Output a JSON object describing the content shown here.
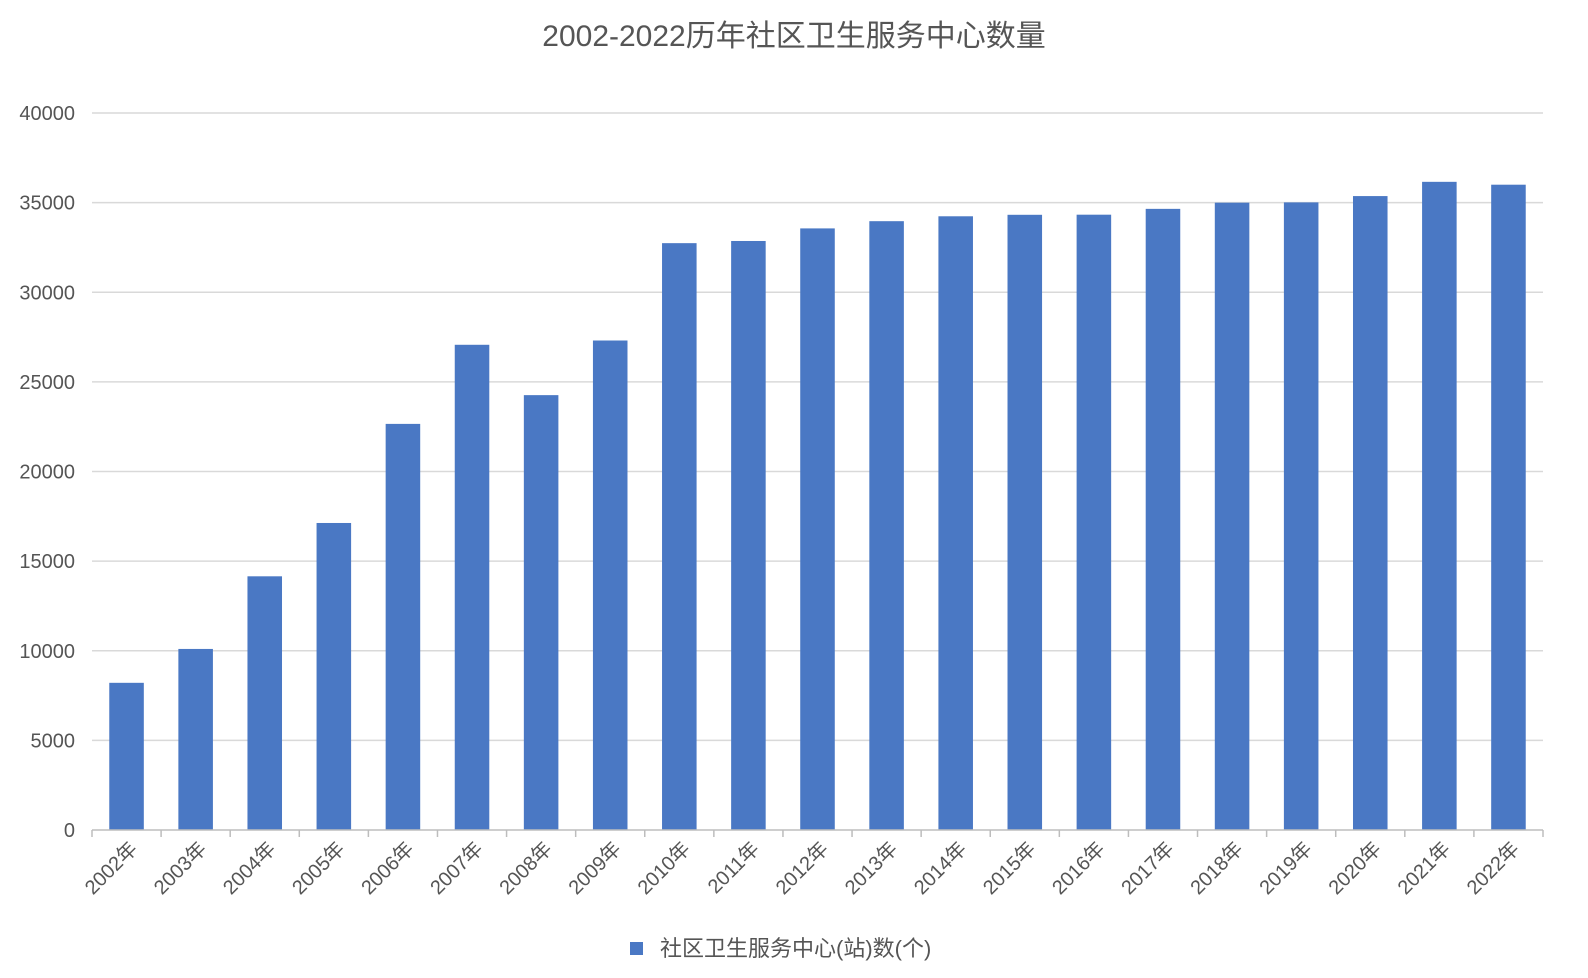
{
  "chart_data": {
    "type": "bar",
    "title": "2002-2022历年社区卫生服务中心数量",
    "xlabel": "",
    "ylabel": "",
    "categories": [
      "2002年",
      "2003年",
      "2004年",
      "2005年",
      "2006年",
      "2007年",
      "2008年",
      "2009年",
      "2010年",
      "2011年",
      "2012年",
      "2013年",
      "2014年",
      "2015年",
      "2016年",
      "2017年",
      "2018年",
      "2019年",
      "2020年",
      "2021年",
      "2022年"
    ],
    "series": [
      {
        "name": "社区卫生服务中心(站)数(个)",
        "values": [
          8211,
          10101,
          14153,
          17128,
          22656,
          27069,
          24260,
          27308,
          32739,
          32860,
          33562,
          33965,
          34238,
          34321,
          34327,
          34652,
          34997,
          35013,
          35365,
          36160,
          36000
        ],
        "color": "#4a78c4"
      }
    ],
    "ylim": [
      0,
      40000
    ],
    "yticks": [
      0,
      5000,
      10000,
      15000,
      20000,
      25000,
      30000,
      35000,
      40000
    ],
    "grid": true,
    "legend_position": "bottom-center"
  }
}
